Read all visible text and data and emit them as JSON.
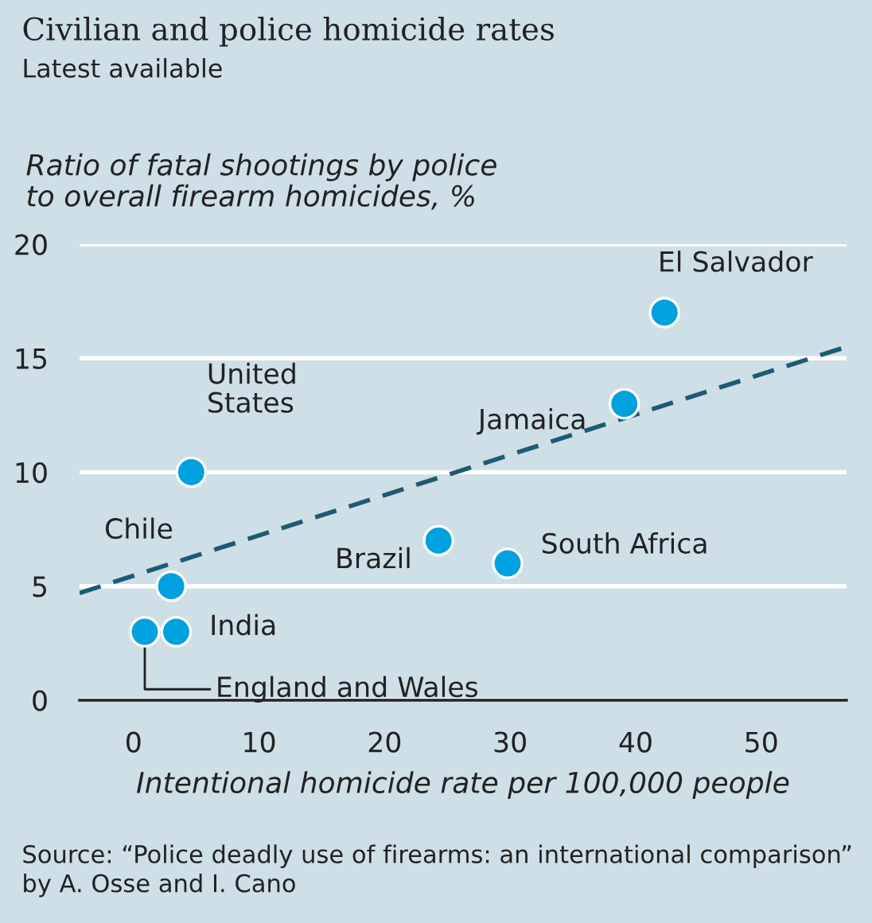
{
  "chart_data": {
    "type": "scatter",
    "title": "Civilian and police homicide rates",
    "subtitle": "Latest available",
    "ylabel": "Ratio of fatal shootings by police\nto overall firearm homicides, %",
    "xlabel": "Intentional homicide rate per 100,000 people",
    "series": [
      {
        "color": "#00a1de",
        "marker": "circle",
        "x": [
          0.9,
          3.4,
          3.0,
          4.6,
          24.3,
          29.8,
          39.1,
          42.3
        ],
        "values": [
          3,
          3,
          5,
          10,
          7,
          6,
          13,
          17
        ]
      },
      {
        "type": "line",
        "color": "#1f5a73",
        "line_style": "dashed",
        "x": [
          -4.3,
          56.8
        ],
        "values": [
          4.7,
          15.5
        ]
      }
    ],
    "annotations": [
      {
        "text": "England and Wales",
        "x": 0.9,
        "y": 3
      },
      {
        "text": "India",
        "x": 3.4,
        "y": 3
      },
      {
        "text": "Chile",
        "x": 3.0,
        "y": 5
      },
      {
        "text": "United\nStates",
        "x": 4.6,
        "y": 10
      },
      {
        "text": "Brazil",
        "x": 24.3,
        "y": 7
      },
      {
        "text": "South Africa",
        "x": 29.8,
        "y": 6
      },
      {
        "text": "Jamaica",
        "x": 39.1,
        "y": 13
      },
      {
        "text": "El Salvador",
        "x": 42.3,
        "y": 17
      },
      "Source: “Police deadly use of firearms: an international comparison” by A. Osse and I. Cano"
    ],
    "xlim": [
      -4.3,
      56.8
    ],
    "xticks": [
      0,
      10,
      20,
      30,
      40,
      50
    ],
    "ylim": [
      0,
      20
    ],
    "yticks": [
      0,
      5,
      10,
      15,
      20
    ],
    "grid": "y"
  }
}
